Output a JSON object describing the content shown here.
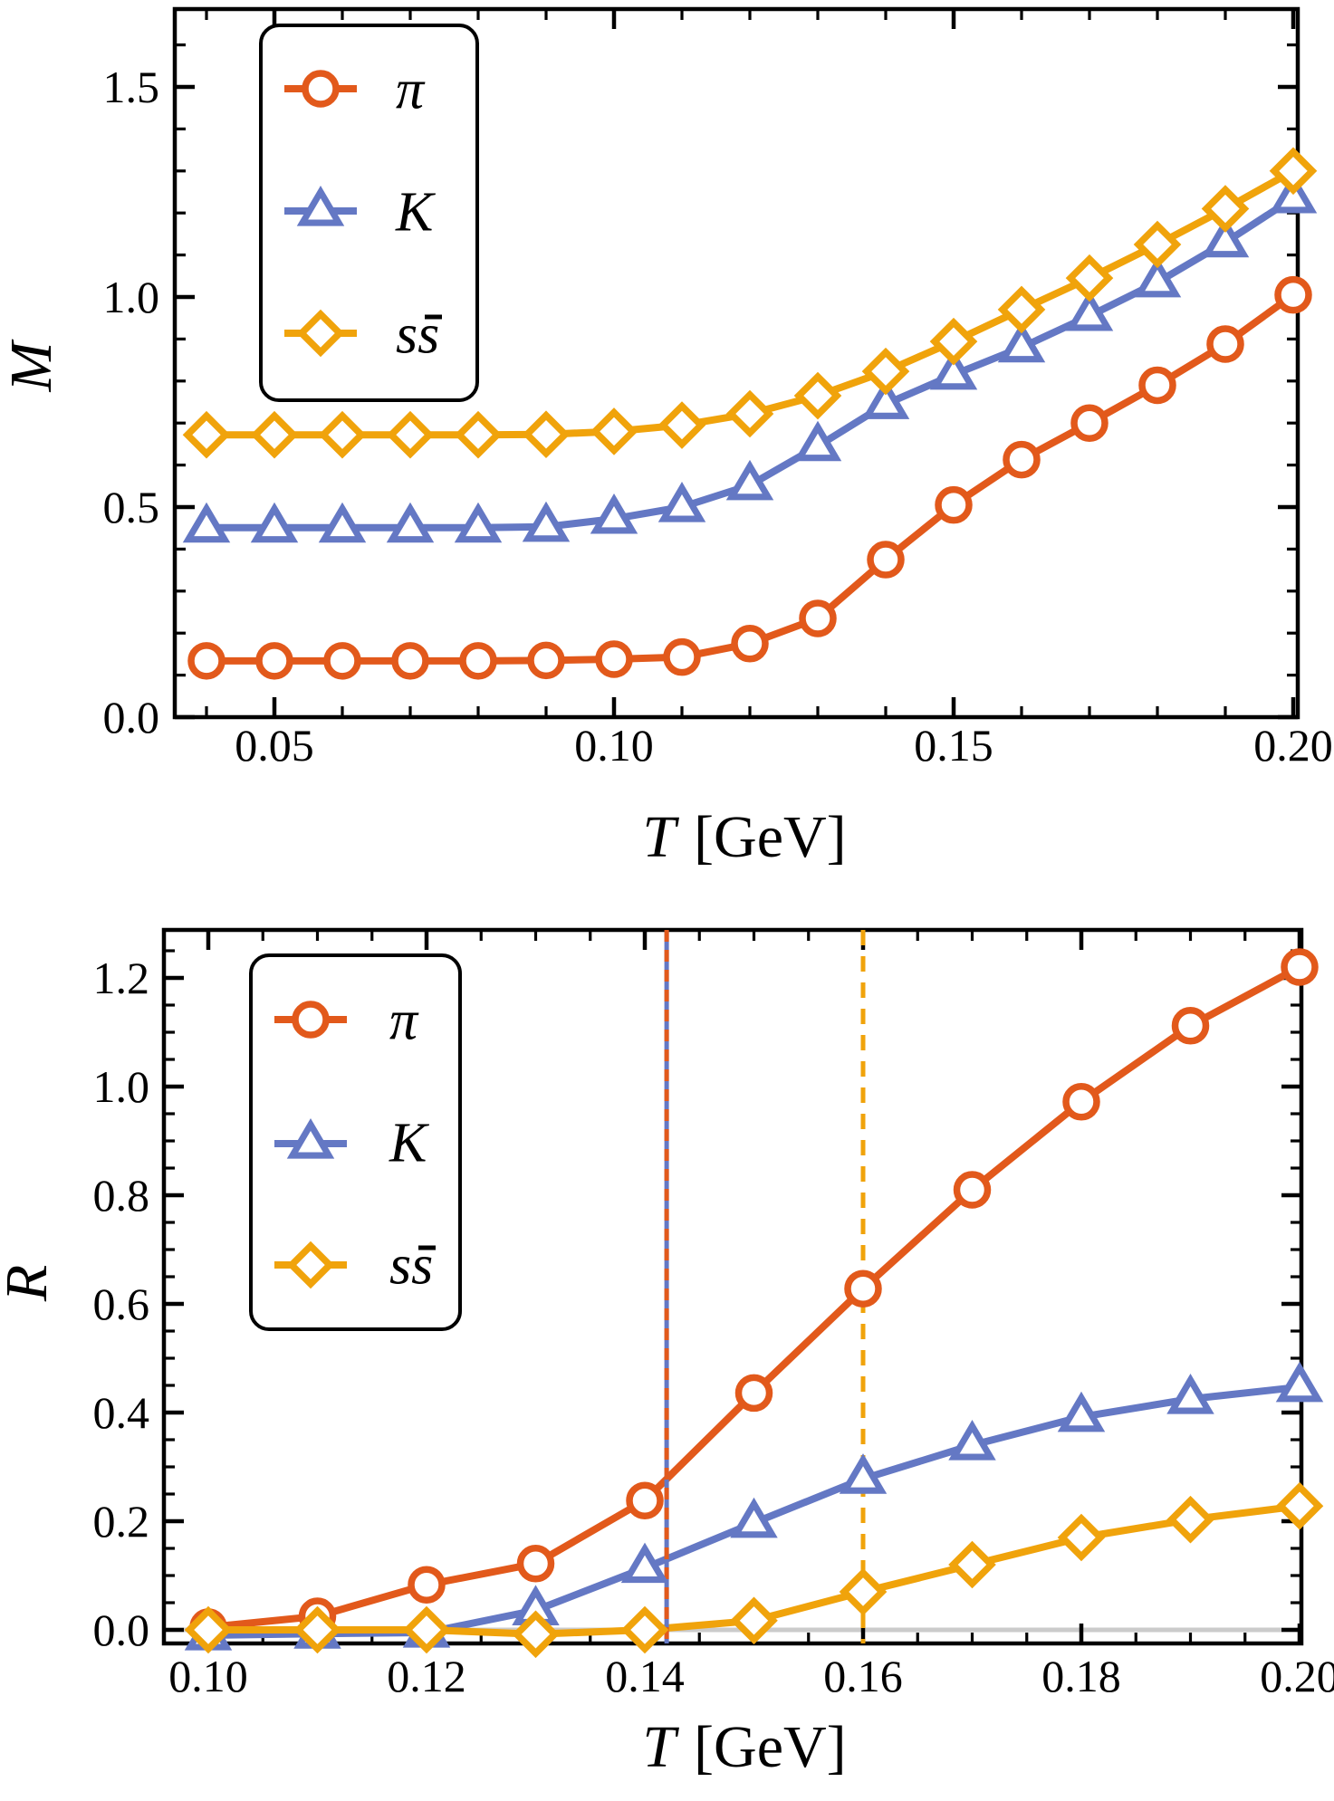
{
  "chart_data": [
    {
      "type": "line",
      "title": "",
      "xlabel_symbol": "T",
      "xlabel_unit": "[GeV]",
      "ylabel": "M",
      "x": [
        0.04,
        0.05,
        0.06,
        0.07,
        0.08,
        0.09,
        0.1,
        0.11,
        0.12,
        0.13,
        0.14,
        0.15,
        0.16,
        0.17,
        0.18,
        0.19,
        0.2
      ],
      "series": [
        {
          "name": "pi",
          "label": "π",
          "label_bar": "",
          "color": "#E2591B",
          "marker": "circle",
          "values": [
            0.134,
            0.134,
            0.134,
            0.134,
            0.134,
            0.135,
            0.138,
            0.143,
            0.175,
            0.235,
            0.375,
            0.505,
            0.613,
            0.7,
            0.79,
            0.888,
            1.005
          ]
        },
        {
          "name": "K",
          "label": "K",
          "label_bar": "",
          "color": "#6478C4",
          "marker": "triangle",
          "values": [
            0.451,
            0.451,
            0.451,
            0.451,
            0.451,
            0.453,
            0.472,
            0.5,
            0.552,
            0.645,
            0.745,
            0.815,
            0.88,
            0.955,
            1.035,
            1.13,
            1.235
          ]
        },
        {
          "name": "ssbar",
          "label": "s",
          "label_bar": "s",
          "color": "#F0A30B",
          "marker": "diamond",
          "values": [
            0.672,
            0.672,
            0.672,
            0.672,
            0.672,
            0.673,
            0.68,
            0.695,
            0.722,
            0.765,
            0.823,
            0.894,
            0.97,
            1.045,
            1.125,
            1.21,
            1.3
          ]
        }
      ],
      "xticks": {
        "major": [
          0.05,
          0.1,
          0.15,
          0.2
        ],
        "labels": [
          "0.05",
          "0.10",
          "0.15",
          "0.20"
        ],
        "minor": [
          0.04,
          0.06,
          0.07,
          0.08,
          0.09,
          0.11,
          0.12,
          0.13,
          0.14,
          0.16,
          0.17,
          0.18,
          0.19
        ]
      },
      "yticks": {
        "major": [
          0,
          0.5,
          1.0,
          1.5
        ],
        "labels": [
          "0.0",
          "0.5",
          "1.0",
          "1.5"
        ],
        "minor": [
          0.1,
          0.2,
          0.3,
          0.4,
          0.6,
          0.7,
          0.8,
          0.9,
          1.1,
          1.2,
          1.3,
          1.4,
          1.6
        ]
      },
      "xlim": [
        0.0353,
        0.2007
      ],
      "ylim": [
        0,
        1.685
      ],
      "grid": "off",
      "legend_position": "upper-left"
    },
    {
      "type": "line",
      "title": "",
      "xlabel_symbol": "T",
      "xlabel_unit": "[GeV]",
      "ylabel": "R",
      "x": [
        0.1,
        0.11,
        0.12,
        0.13,
        0.14,
        0.15,
        0.16,
        0.17,
        0.18,
        0.19,
        0.2
      ],
      "series": [
        {
          "name": "pi",
          "label": "π",
          "label_bar": "",
          "color": "#E2591B",
          "marker": "circle",
          "values": [
            0.005,
            0.025,
            0.083,
            0.122,
            0.238,
            0.436,
            0.628,
            0.81,
            0.972,
            1.112,
            1.22
          ]
        },
        {
          "name": "K",
          "label": "K",
          "label_bar": "",
          "color": "#6478C4",
          "marker": "triangle",
          "values": [
            -0.01,
            -0.007,
            -0.005,
            0.036,
            0.114,
            0.197,
            0.278,
            0.34,
            0.392,
            0.425,
            0.447
          ]
        },
        {
          "name": "ssbar",
          "label": "s",
          "label_bar": "s",
          "color": "#F0A30B",
          "marker": "diamond",
          "values": [
            0.0,
            0.0,
            0.0,
            -0.008,
            0.0,
            0.017,
            0.07,
            0.12,
            0.17,
            0.203,
            0.228
          ]
        }
      ],
      "xticks": {
        "major": [
          0.1,
          0.12,
          0.14,
          0.16,
          0.18,
          0.2
        ],
        "labels": [
          "0.10",
          "0.12",
          "0.14",
          "0.16",
          "0.18",
          "0.20"
        ],
        "minor": [
          0.105,
          0.11,
          0.115,
          0.125,
          0.13,
          0.135,
          0.145,
          0.15,
          0.155,
          0.165,
          0.17,
          0.175,
          0.185,
          0.19,
          0.195
        ]
      },
      "yticks": {
        "major": [
          0,
          0.2,
          0.4,
          0.6,
          0.8,
          1.0,
          1.2
        ],
        "labels": [
          "0.0",
          "0.2",
          "0.4",
          "0.6",
          "0.8",
          "1.0",
          "1.2"
        ],
        "minor": [
          0.05,
          0.1,
          0.15,
          0.25,
          0.3,
          0.35,
          0.45,
          0.5,
          0.55,
          0.65,
          0.7,
          0.75,
          0.85,
          0.9,
          0.95,
          1.05,
          1.1,
          1.15,
          1.25
        ]
      },
      "xlim": [
        0.0959,
        0.2002
      ],
      "ylim": [
        -0.025,
        1.288
      ],
      "grid": "off",
      "legend_position": "upper-left",
      "vlines": [
        {
          "x": 0.142,
          "color": "#6478C4",
          "style": "solid",
          "overlay_color": "#E2591B",
          "overlay_style": "dashed"
        },
        {
          "x": 0.16,
          "color": "#F0A30B",
          "style": "dashed"
        }
      ],
      "hlines": [
        {
          "y": 0,
          "color": "#CBCBCB"
        }
      ]
    }
  ]
}
